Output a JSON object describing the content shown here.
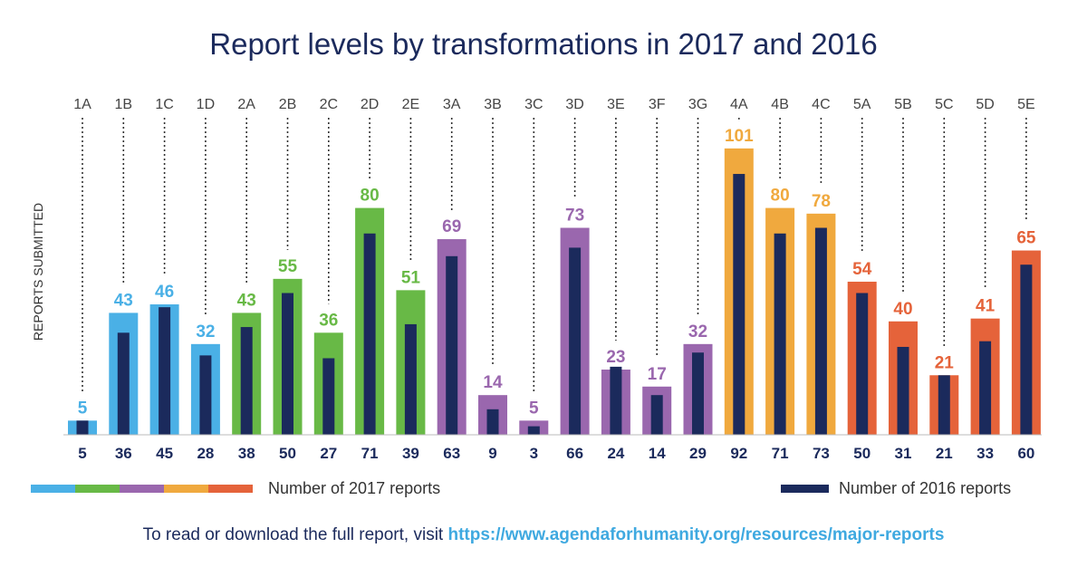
{
  "chart_data": {
    "type": "bar",
    "title": "Report levels by transformations in 2017 and 2016",
    "ylabel": "REPORTS SUBMITTED",
    "ylim": [
      0,
      110
    ],
    "categories": [
      "1A",
      "1B",
      "1C",
      "1D",
      "2A",
      "2B",
      "2C",
      "2D",
      "2E",
      "3A",
      "3B",
      "3C",
      "3D",
      "3E",
      "3F",
      "3G",
      "4A",
      "4B",
      "4C",
      "5A",
      "5B",
      "5C",
      "5D",
      "5E"
    ],
    "series": [
      {
        "name": "Number of 2017 reports",
        "values": [
          5,
          43,
          46,
          32,
          43,
          55,
          36,
          80,
          51,
          69,
          14,
          5,
          73,
          23,
          17,
          32,
          101,
          80,
          78,
          54,
          40,
          21,
          41,
          65
        ]
      },
      {
        "name": "Number of 2016 reports",
        "values": [
          5,
          36,
          45,
          28,
          38,
          50,
          27,
          71,
          39,
          63,
          9,
          3,
          66,
          24,
          14,
          29,
          92,
          71,
          73,
          50,
          31,
          21,
          33,
          60
        ]
      }
    ],
    "group_colors": [
      "#4ab0e6",
      "#4ab0e6",
      "#4ab0e6",
      "#4ab0e6",
      "#68b946",
      "#68b946",
      "#68b946",
      "#68b946",
      "#68b946",
      "#9a67ae",
      "#9a67ae",
      "#9a67ae",
      "#9a67ae",
      "#9a67ae",
      "#9a67ae",
      "#9a67ae",
      "#f0a93e",
      "#f0a93e",
      "#f0a93e",
      "#e5633a",
      "#e5633a",
      "#e5633a",
      "#e5633a",
      "#e5633a"
    ],
    "legend_colors_2017": [
      "#4ab0e6",
      "#68b946",
      "#9a67ae",
      "#f0a93e",
      "#e5633a"
    ],
    "color_2016": "#1b2a5c",
    "legend": "bottom"
  },
  "footer": {
    "text": "To read or download the full report, visit ",
    "link": "https://www.agendaforhumanity.org/resources/major-reports"
  }
}
